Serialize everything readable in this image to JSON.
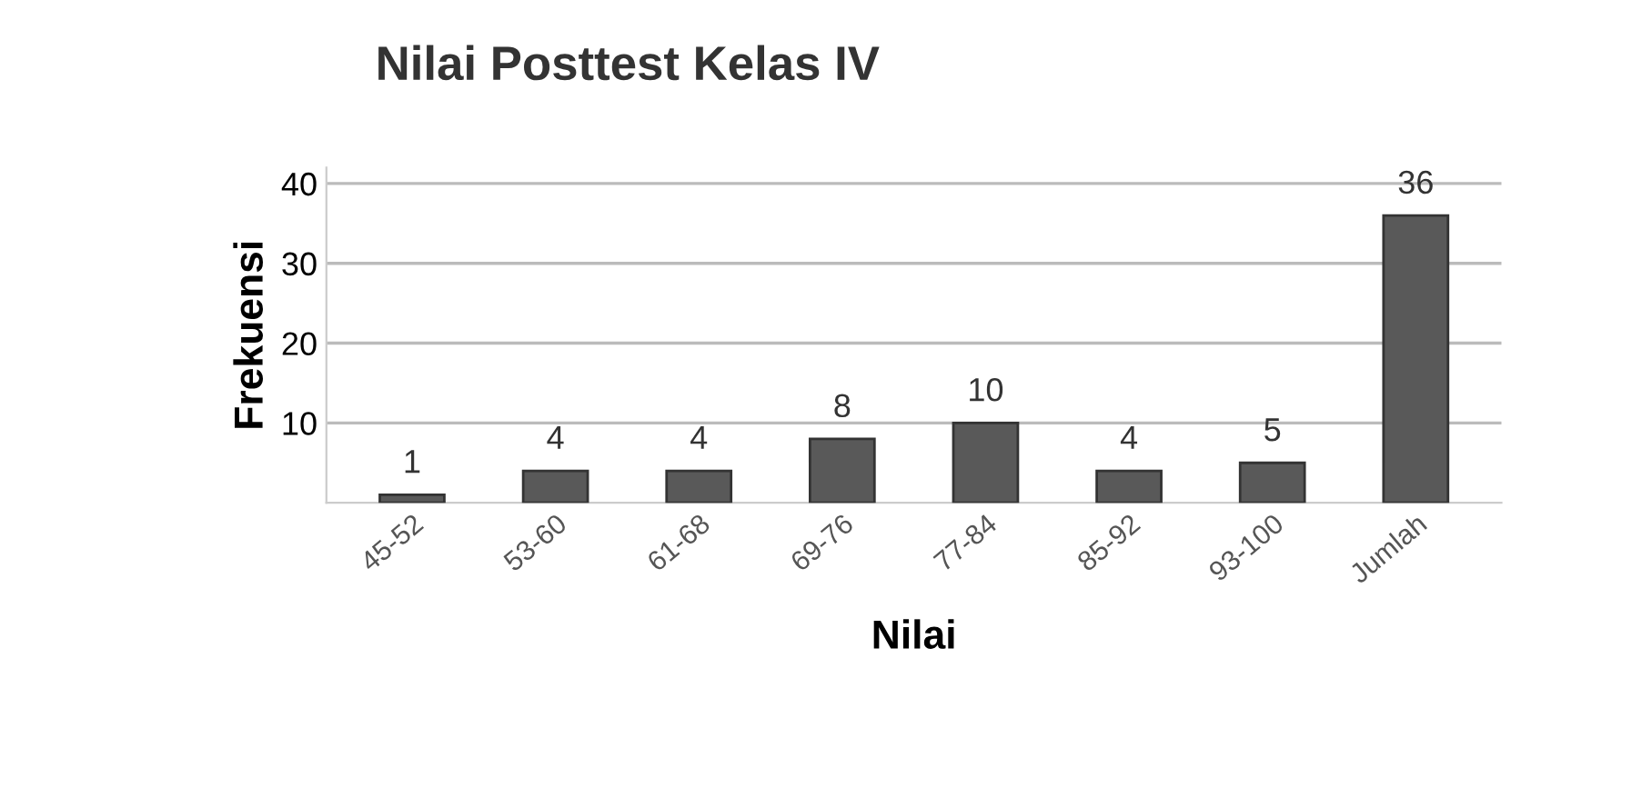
{
  "chart_data": {
    "type": "bar",
    "title": "Nilai Posttest Kelas IV",
    "xlabel": "Nilai",
    "ylabel": "Frekuensi",
    "categories": [
      "45-52",
      "53-60",
      "61-68",
      "69-76",
      "77-84",
      "85-92",
      "93-100",
      "Jumlah"
    ],
    "values": [
      1,
      4,
      4,
      8,
      10,
      4,
      5,
      36
    ],
    "color": "#595959",
    "ylim": [
      0,
      42
    ],
    "yticks": [
      10,
      20,
      30,
      40
    ],
    "grid": "y",
    "data_labels": true
  }
}
